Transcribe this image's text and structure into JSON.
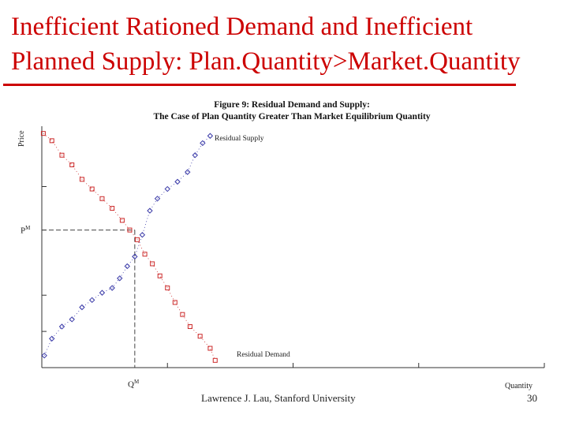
{
  "slide": {
    "title_line1": "Inefficient Rationed Demand and Inefficient",
    "title_line2": "Planned Supply: Plan.Quantity>Market.Quantity",
    "title_color": "#cc0000",
    "footer": "Lawrence J. Lau, Stanford University",
    "page_number": "30"
  },
  "figure": {
    "caption_line1": "Figure 9: Residual Demand and Supply:",
    "caption_line2": "The Case of Plan Quantity Greater Than Market Equilibrium Quantity",
    "y_axis_label": "Price",
    "x_axis_label": "Quantity",
    "price_marker": "P^M",
    "quantity_marker": "Q^M",
    "supply_label": "Residual Supply",
    "demand_label": "Residual Demand",
    "supply_color": "#3a3aa8",
    "demand_color": "#cc2a2a"
  },
  "chart_data": {
    "type": "scatter",
    "title": "Figure 9: Residual Demand and Supply: The Case of Plan Quantity Greater Than Market Equilibrium Quantity",
    "xlabel": "Quantity",
    "ylabel": "Price",
    "xlim": [
      0,
      100
    ],
    "ylim": [
      0,
      100
    ],
    "equilibrium": {
      "x": 18.5,
      "y": 57
    },
    "series": [
      {
        "name": "Residual Supply",
        "marker": "diamond",
        "x": [
          0.5,
          2,
          4,
          6,
          8,
          10,
          12,
          14,
          15.5,
          17,
          18.5,
          20,
          21.5,
          23,
          25,
          27,
          29,
          30.5,
          32,
          33.5
        ],
        "y": [
          5,
          12,
          17,
          20,
          25,
          28,
          31,
          33,
          37,
          42,
          46,
          55,
          65,
          70,
          74,
          77,
          81,
          88,
          93,
          96
        ]
      },
      {
        "name": "Residual Demand",
        "marker": "square",
        "x": [
          0.3,
          2,
          4,
          6,
          8,
          10,
          12,
          14,
          16,
          17.5,
          19,
          20.5,
          22,
          23.5,
          25,
          26.5,
          28,
          29.5,
          31.5,
          33.5,
          34.5
        ],
        "y": [
          97,
          94,
          88,
          84,
          78,
          74,
          70,
          66,
          61,
          57,
          53,
          47,
          43,
          38,
          33,
          27,
          22,
          17,
          13,
          8,
          3
        ]
      }
    ]
  }
}
